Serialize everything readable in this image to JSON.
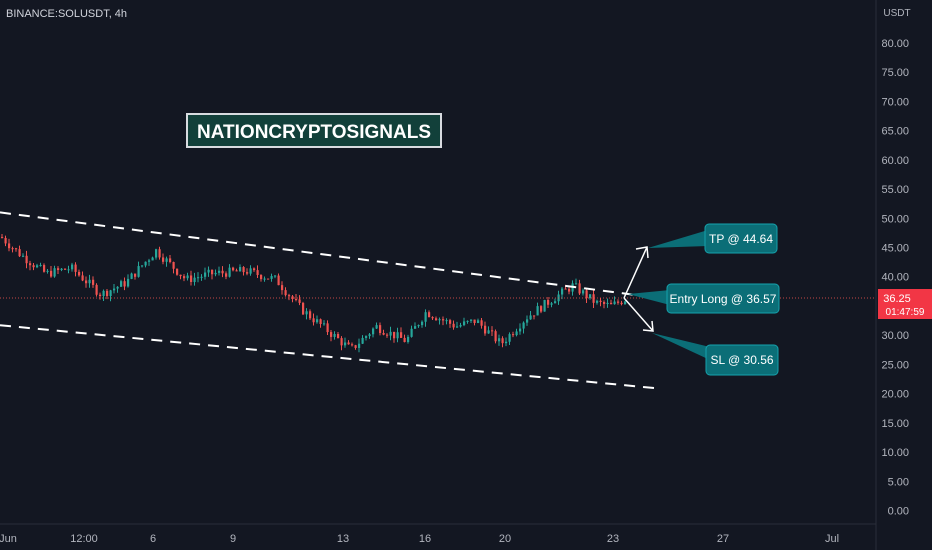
{
  "header": {
    "symbol": "BINANCE:SOLUSDT, 4h"
  },
  "price_axis": {
    "currency": "USDT",
    "ticks": [
      "80.00",
      "75.00",
      "70.00",
      "65.00",
      "60.00",
      "55.00",
      "50.00",
      "45.00",
      "40.00",
      "35.00",
      "30.00",
      "25.00",
      "20.00",
      "15.00",
      "10.00",
      "5.00",
      "0.00"
    ]
  },
  "time_axis": {
    "labels": [
      "Jun",
      "12:00",
      "6",
      "9",
      "13",
      "16",
      "20",
      "23",
      "27",
      "Jul"
    ]
  },
  "watermark": "NATIONCRYPTOSIGNALS",
  "current_price": {
    "value": "36.25",
    "countdown": "01:47:59",
    "level": 36.25
  },
  "colors": {
    "background": "#131722",
    "up": "#26a69a",
    "down": "#ef5350",
    "callout": "#0b6e77",
    "text": "#b2b5be"
  },
  "chart_data": {
    "type": "candlestick",
    "title": "BINANCE:SOLUSDT, 4h",
    "xlabel": "",
    "ylabel": "USDT",
    "ylim": [
      0,
      80
    ],
    "grid": false,
    "x_ticks": [
      "Jun",
      "12:00",
      "6",
      "9",
      "13",
      "16",
      "20",
      "23",
      "27",
      "Jul"
    ],
    "close_path": [
      [
        0,
        46.8
      ],
      [
        18,
        44.0
      ],
      [
        45,
        40.5
      ],
      [
        70,
        41.5
      ],
      [
        100,
        37.0
      ],
      [
        125,
        39.0
      ],
      [
        155,
        44.5
      ],
      [
        185,
        39.5
      ],
      [
        210,
        40.5
      ],
      [
        245,
        41.0
      ],
      [
        275,
        39.5
      ],
      [
        300,
        34.5
      ],
      [
        325,
        31.0
      ],
      [
        350,
        27.5
      ],
      [
        375,
        31.5
      ],
      [
        405,
        29.0
      ],
      [
        425,
        34.0
      ],
      [
        455,
        31.5
      ],
      [
        475,
        32.5
      ],
      [
        500,
        28.5
      ],
      [
        525,
        33.0
      ],
      [
        550,
        36.0
      ],
      [
        572,
        38.5
      ],
      [
        595,
        35.5
      ],
      [
        610,
        35.0
      ],
      [
        625,
        36.25
      ]
    ],
    "channel": {
      "upper": {
        "start": 51.0,
        "end": 36.4
      },
      "lower": {
        "start": 31.7,
        "end": 20.9
      }
    },
    "annotations": [
      {
        "label": "TP @ 44.64",
        "price": 44.64
      },
      {
        "label": "Entry Long @ 36.57",
        "price": 36.57
      },
      {
        "label": "SL @ 30.56",
        "price": 30.56
      }
    ]
  }
}
